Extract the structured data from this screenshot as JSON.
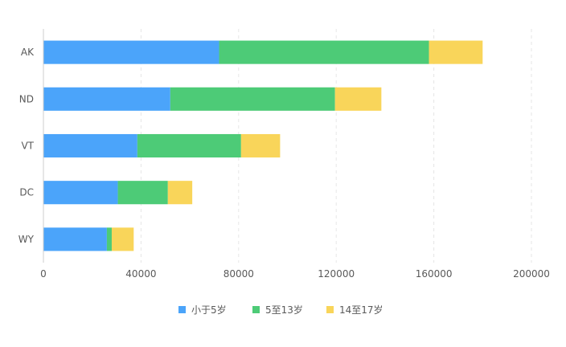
{
  "chart_data": {
    "type": "bar",
    "orientation": "horizontal",
    "stacked": true,
    "categories": [
      "AK",
      "ND",
      "VT",
      "DC",
      "WY"
    ],
    "series": [
      {
        "name": "小于5岁",
        "color": "#4ba4fa",
        "values": [
          72000,
          52000,
          38500,
          30500,
          26000
        ]
      },
      {
        "name": "5至13岁",
        "color": "#4dcb77",
        "values": [
          86000,
          67500,
          42500,
          20500,
          2000
        ]
      },
      {
        "name": "14至17岁",
        "color": "#f9d55a",
        "values": [
          22000,
          19000,
          16000,
          10000,
          9000
        ]
      }
    ],
    "xlim": [
      0,
      200000
    ],
    "xticks": [
      "0",
      "40000",
      "80000",
      "120000",
      "160000",
      "200000"
    ],
    "grid": {
      "vertical": true,
      "style": "dashed"
    },
    "legend": {
      "position": "bottom-center"
    }
  }
}
